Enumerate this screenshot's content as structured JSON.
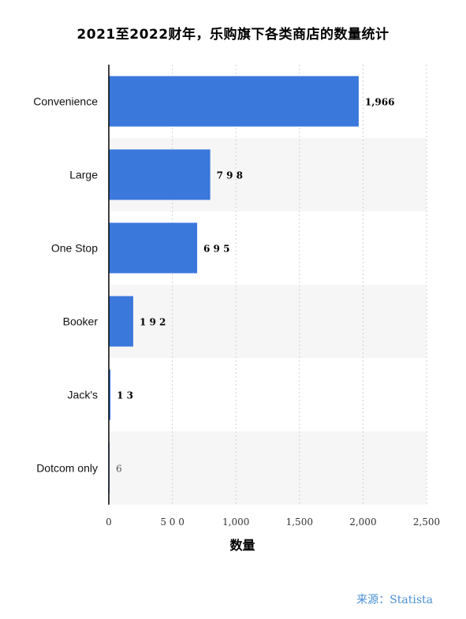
{
  "chart_data": {
    "type": "bar",
    "orientation": "horizontal",
    "title": "2021至2022财年，乐购旗下各类商店的数量统计",
    "categories": [
      "Convenience",
      "Large",
      "One Stop",
      "Booker",
      "Jack's",
      "Dotcom only"
    ],
    "values": [
      1966,
      798,
      695,
      192,
      13,
      6
    ],
    "value_labels": [
      "1,966",
      "7 9 8",
      "6 9 5",
      "1 9 2",
      "1 3",
      "6"
    ],
    "xlabel": "数量",
    "ylabel": "",
    "xlim": [
      0,
      2500
    ],
    "x_ticks": [
      {
        "value": 0,
        "label": "0"
      },
      {
        "value": 500,
        "label": "5 0 0"
      },
      {
        "value": 1000,
        "label": "1,000"
      },
      {
        "value": 1500,
        "label": "1,500"
      },
      {
        "value": 2000,
        "label": "2,000"
      },
      {
        "value": 2500,
        "label": "2,500"
      }
    ],
    "bar_color": "#3b78db",
    "band_color": "#f6f6f6",
    "grid": true
  },
  "source": "来源：Statista"
}
